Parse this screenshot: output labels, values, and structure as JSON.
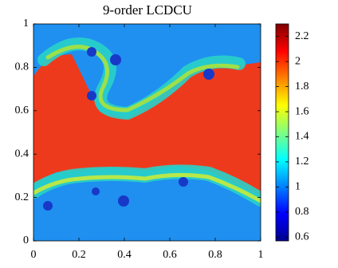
{
  "chart_data": {
    "type": "image",
    "title": "9-order LCDCU",
    "xlim": [
      0,
      1
    ],
    "ylim": [
      0,
      1
    ],
    "xticks": [
      0,
      0.2,
      0.4,
      0.6,
      0.8,
      1
    ],
    "yticks": [
      0,
      0.2,
      0.4,
      0.6,
      0.8,
      1
    ],
    "colormap": "jet",
    "clim": [
      0.57,
      2.3
    ],
    "cticks": [
      0.6,
      0.8,
      1,
      1.2,
      1.4,
      1.6,
      1.8,
      2,
      2.2
    ]
  }
}
